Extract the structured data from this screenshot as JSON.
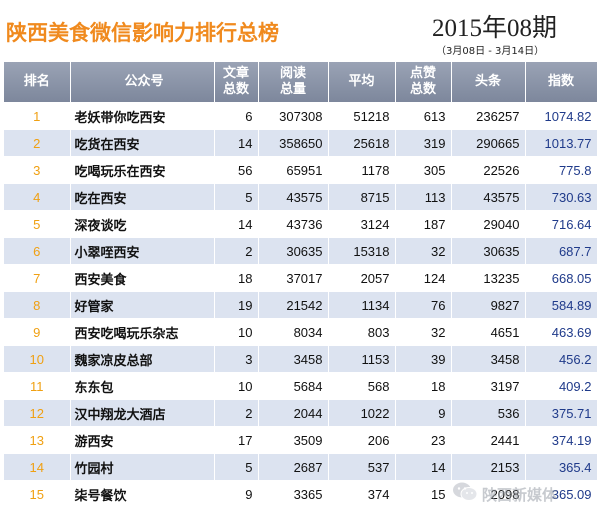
{
  "header": {
    "title": "陕西美食微信影响力排行总榜",
    "period": "2015年08期",
    "date_range": "（3月08日 - 3月14日）"
  },
  "columns": [
    {
      "key": "rank",
      "lines": [
        "排名"
      ]
    },
    {
      "key": "name",
      "lines": [
        "公众号"
      ]
    },
    {
      "key": "articles",
      "lines": [
        "文章",
        "总数"
      ]
    },
    {
      "key": "reads",
      "lines": [
        "阅读",
        "总量"
      ]
    },
    {
      "key": "avg",
      "lines": [
        "平均"
      ]
    },
    {
      "key": "likes",
      "lines": [
        "点赞",
        "总数"
      ]
    },
    {
      "key": "headline",
      "lines": [
        "头条"
      ]
    },
    {
      "key": "index",
      "lines": [
        "指数"
      ]
    }
  ],
  "rows": [
    {
      "rank": "1",
      "name": "老妖带你吃西安",
      "articles": "6",
      "reads": "307308",
      "avg": "51218",
      "likes": "613",
      "headline": "236257",
      "index": "1074.82"
    },
    {
      "rank": "2",
      "name": "吃货在西安",
      "articles": "14",
      "reads": "358650",
      "avg": "25618",
      "likes": "319",
      "headline": "290665",
      "index": "1013.77"
    },
    {
      "rank": "3",
      "name": "吃喝玩乐在西安",
      "articles": "56",
      "reads": "65951",
      "avg": "1178",
      "likes": "305",
      "headline": "22526",
      "index": "775.8"
    },
    {
      "rank": "4",
      "name": "吃在西安",
      "articles": "5",
      "reads": "43575",
      "avg": "8715",
      "likes": "113",
      "headline": "43575",
      "index": "730.63"
    },
    {
      "rank": "5",
      "name": "深夜谈吃",
      "articles": "14",
      "reads": "43736",
      "avg": "3124",
      "likes": "187",
      "headline": "29040",
      "index": "716.64"
    },
    {
      "rank": "6",
      "name": "小翠咥西安",
      "articles": "2",
      "reads": "30635",
      "avg": "15318",
      "likes": "32",
      "headline": "30635",
      "index": "687.7"
    },
    {
      "rank": "7",
      "name": "西安美食",
      "articles": "18",
      "reads": "37017",
      "avg": "2057",
      "likes": "124",
      "headline": "13235",
      "index": "668.05"
    },
    {
      "rank": "8",
      "name": "好管家",
      "articles": "19",
      "reads": "21542",
      "avg": "1134",
      "likes": "76",
      "headline": "9827",
      "index": "584.89"
    },
    {
      "rank": "9",
      "name": "西安吃喝玩乐杂志",
      "articles": "10",
      "reads": "8034",
      "avg": "803",
      "likes": "32",
      "headline": "4651",
      "index": "463.69"
    },
    {
      "rank": "10",
      "name": "魏家凉皮总部",
      "articles": "3",
      "reads": "3458",
      "avg": "1153",
      "likes": "39",
      "headline": "3458",
      "index": "456.2"
    },
    {
      "rank": "11",
      "name": "东东包",
      "articles": "10",
      "reads": "5684",
      "avg": "568",
      "likes": "18",
      "headline": "3197",
      "index": "409.2"
    },
    {
      "rank": "12",
      "name": "汉中翔龙大酒店",
      "articles": "2",
      "reads": "2044",
      "avg": "1022",
      "likes": "9",
      "headline": "536",
      "index": "375.71"
    },
    {
      "rank": "13",
      "name": "游西安",
      "articles": "17",
      "reads": "3509",
      "avg": "206",
      "likes": "23",
      "headline": "2441",
      "index": "374.19"
    },
    {
      "rank": "14",
      "name": "竹园村",
      "articles": "5",
      "reads": "2687",
      "avg": "537",
      "likes": "14",
      "headline": "2153",
      "index": "365.4"
    },
    {
      "rank": "15",
      "name": "柒号餐饮",
      "articles": "9",
      "reads": "3365",
      "avg": "374",
      "likes": "15",
      "headline": "2098",
      "index": "365.09"
    }
  ],
  "watermark": {
    "text": "陕西新媒体",
    "icon": "wechat-icon"
  },
  "colors": {
    "title": "#f08a1e",
    "rank_number": "#f0a012",
    "header_bg": "#8a93a8",
    "band": "#dce3f0",
    "index_value": "#1f3a8a"
  }
}
